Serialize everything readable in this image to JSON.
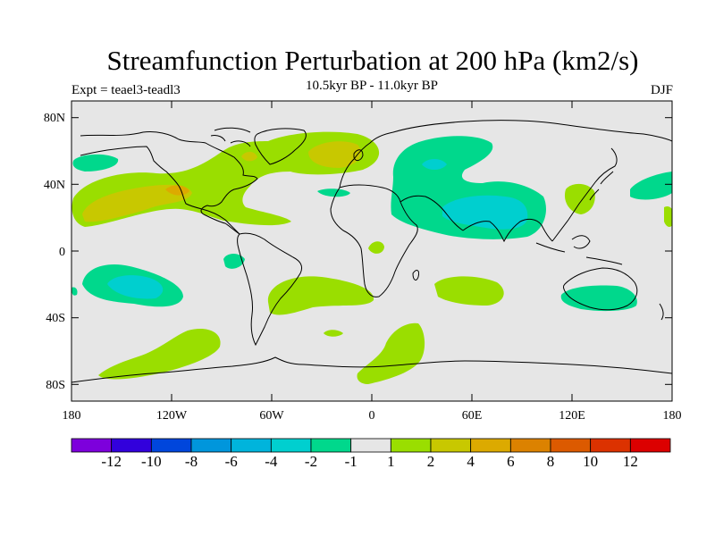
{
  "title": "Streamfunction Perturbation at 200 hPa (km2/s)",
  "left_label": "Expt = teael3-teadl3",
  "center_label": "10.5kyr BP - 11.0kyr BP",
  "right_label": "DJF",
  "axes": {
    "lat_ticks": [
      "80N",
      "40N",
      "0",
      "40S",
      "80S"
    ],
    "lon_ticks": [
      "180",
      "120W",
      "60W",
      "0",
      "60E",
      "120E",
      "180"
    ]
  },
  "colors": {
    "background": "#e6e6e6",
    "neg_2_1": "#00d88c",
    "neg_4_2": "#00cfcf",
    "pos_1_2": "#9ade00",
    "pos_2_4": "#c8c800",
    "pos_4_6": "#dcaa00"
  },
  "colorbar": {
    "colors": [
      "#7d00dc",
      "#3200dc",
      "#0046dc",
      "#0096dc",
      "#00b4dc",
      "#00cfcf",
      "#00d88c",
      "#e6e6e6",
      "#9ade00",
      "#c8c800",
      "#dcaa00",
      "#dc8200",
      "#dc5a00",
      "#dc3200",
      "#dc0000"
    ],
    "labels": [
      "-12",
      "-10",
      "-8",
      "-6",
      "-4",
      "-2",
      "-1",
      "1",
      "2",
      "4",
      "6",
      "8",
      "10",
      "12"
    ]
  }
}
